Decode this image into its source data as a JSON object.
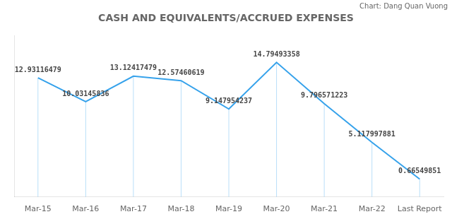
{
  "chart_data": {
    "type": "line",
    "title": "CASH AND EQUIVALENTS/ACCRUED EXPENSES",
    "annotations": [
      "Chart: Dang Quan Vuong"
    ],
    "categories": [
      "Mar-15",
      "Mar-16",
      "Mar-17",
      "Mar-18",
      "Mar-19",
      "Mar-20",
      "Mar-21",
      "Mar-22",
      "Last Report"
    ],
    "values": [
      12.93116479,
      10.03145836,
      13.12417479,
      12.57460619,
      9.147954237,
      14.79493358,
      9.796571223,
      5.117997881,
      0.66549851
    ],
    "ylim": [
      -1.5,
      18
    ],
    "grid": false,
    "data_labels": true,
    "tick_labels": "x"
  }
}
